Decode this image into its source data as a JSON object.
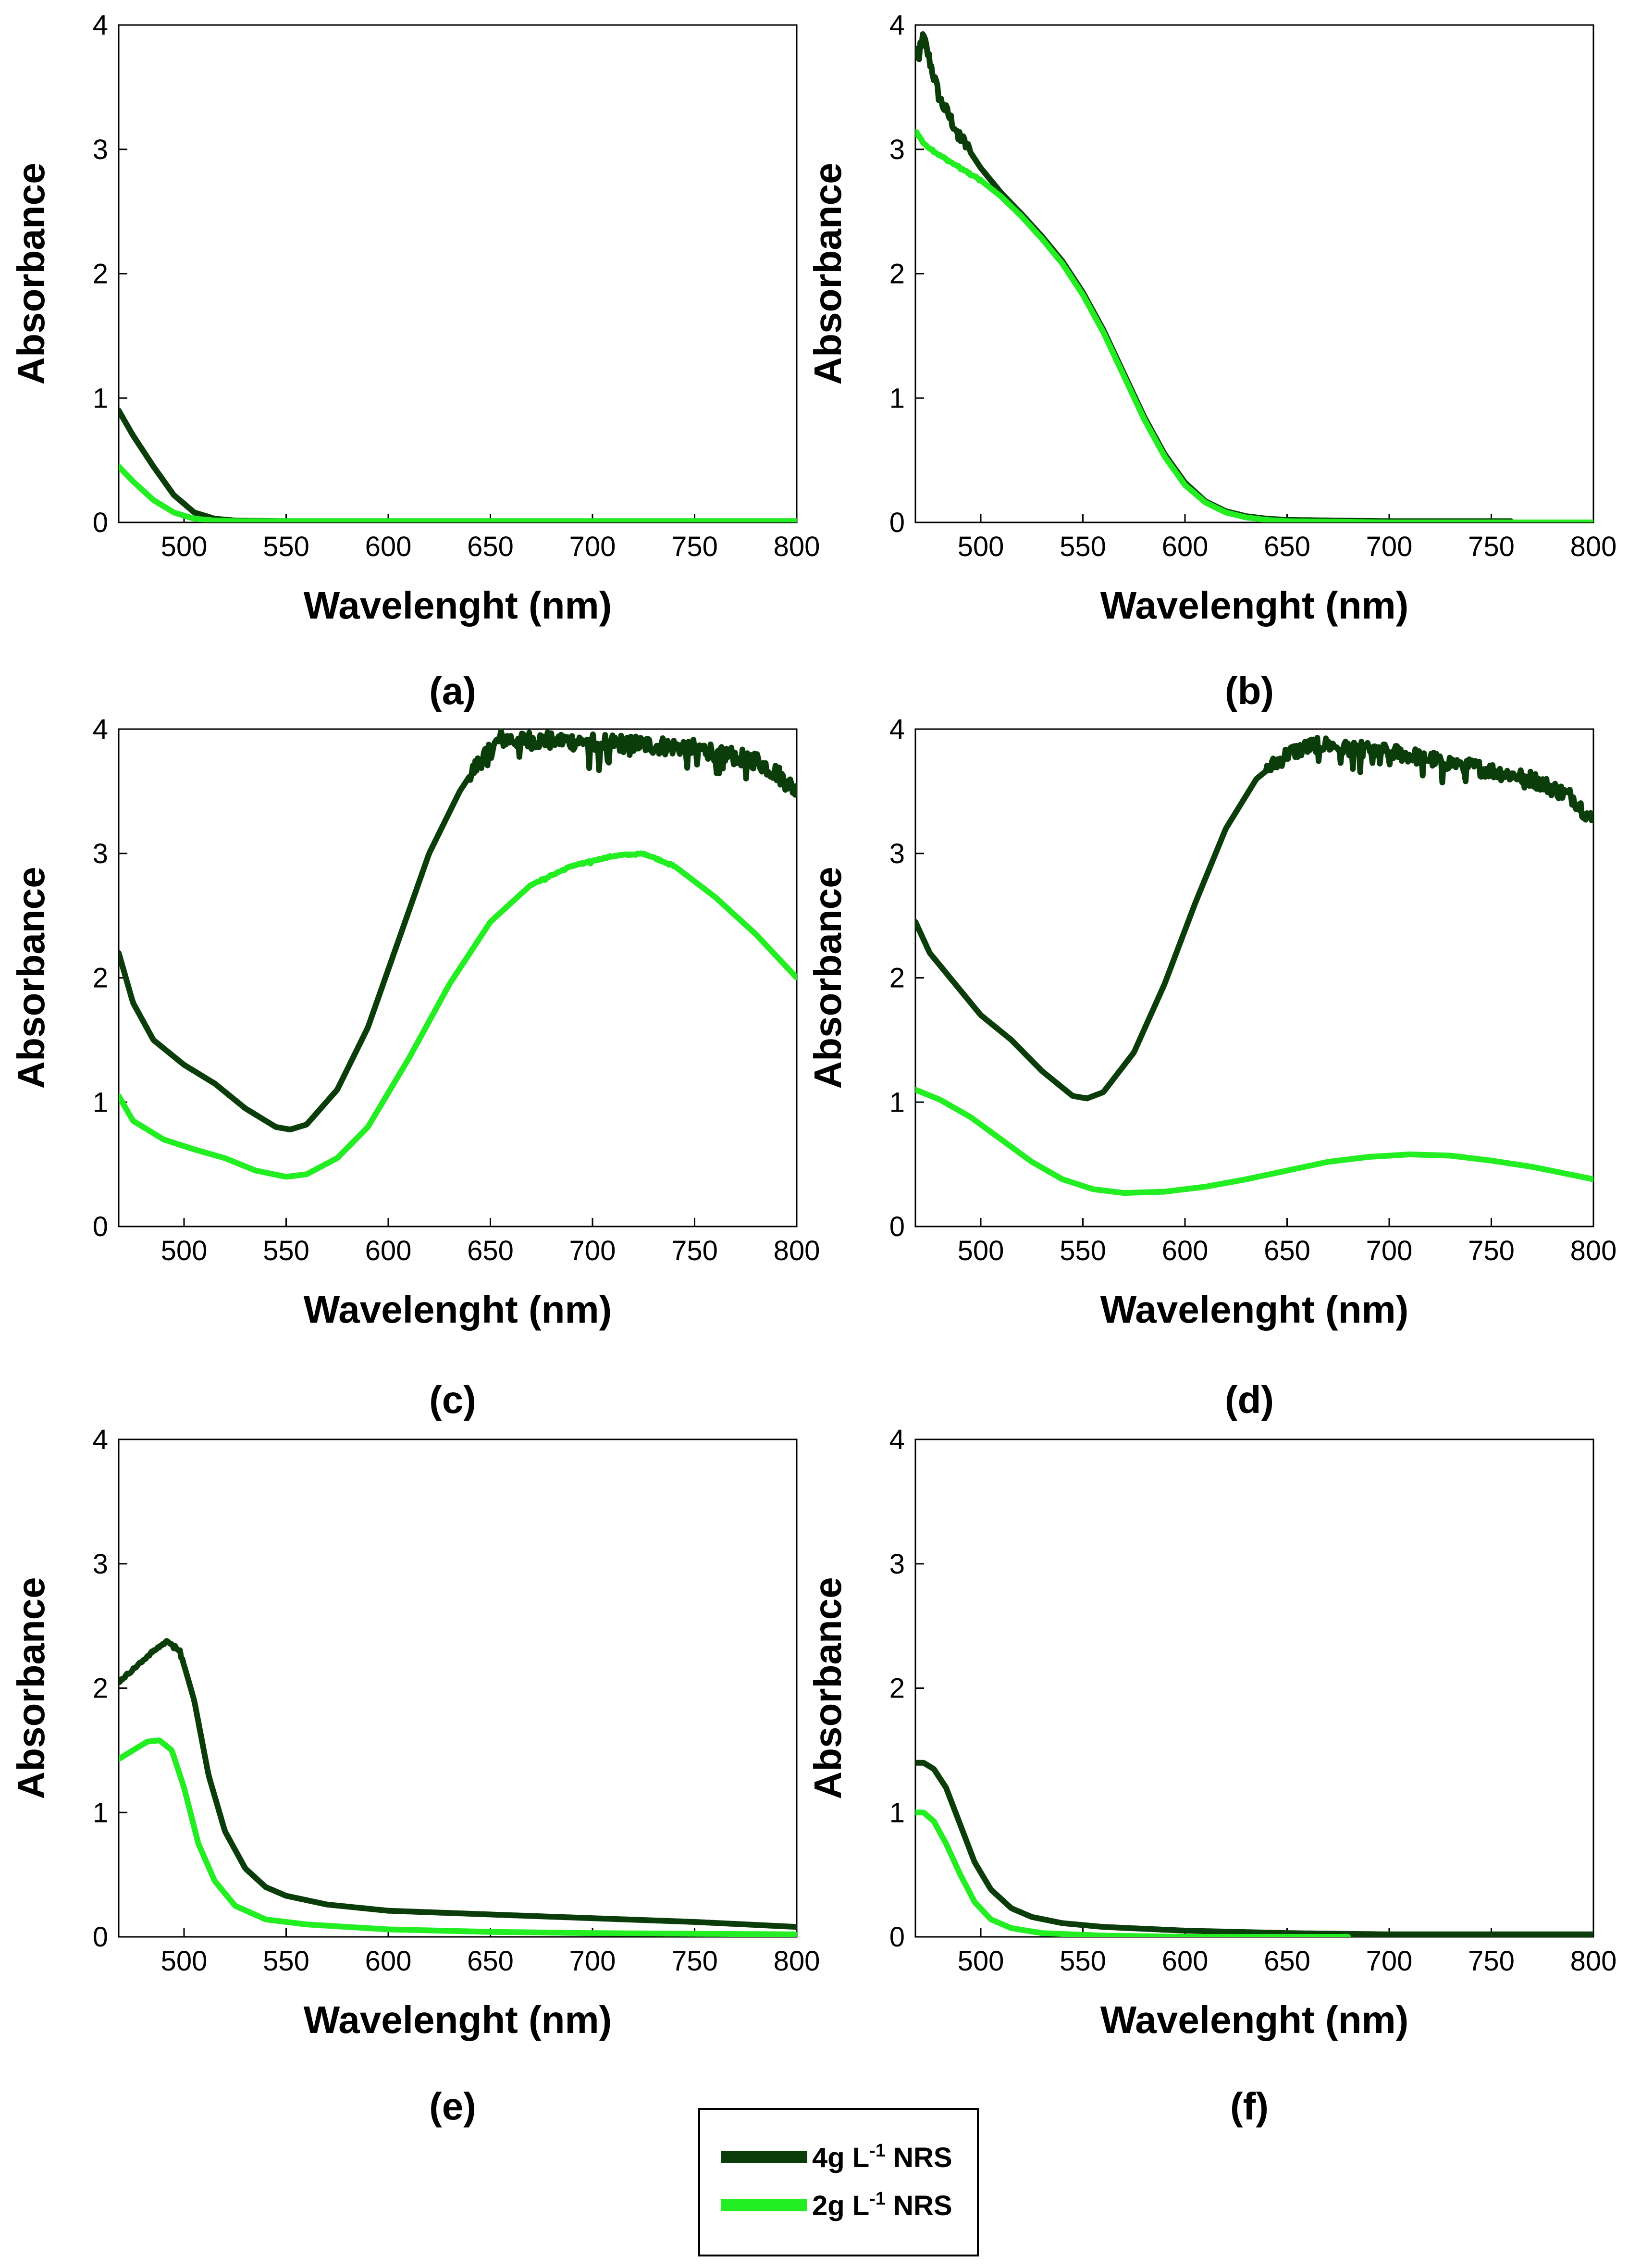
{
  "colors": {
    "dark": "#0b3d0b",
    "light": "#22ee22"
  },
  "legend": {
    "items": [
      {
        "key": "s4",
        "text": "4g L",
        "sup": "-1",
        "tail": " NRS",
        "color": "#0b3d0b"
      },
      {
        "key": "s2",
        "text": "2g L",
        "sup": "-1",
        "tail": " NRS",
        "color": "#22ee22"
      }
    ]
  },
  "chart_data": [
    {
      "id": "a",
      "panel_label": "(a)",
      "type": "line",
      "xlabel": "Wavelenght (nm)",
      "ylabel": "Absorbance",
      "xlim": [
        468,
        800
      ],
      "ylim": [
        0,
        4
      ],
      "xticks": [
        500,
        550,
        600,
        650,
        700,
        750,
        800
      ],
      "yticks": [
        0,
        1,
        2,
        3,
        4
      ],
      "series": [
        {
          "name": "4g L-1 NRS",
          "x": [
            468,
            475,
            485,
            495,
            505,
            515,
            525,
            550,
            600,
            700,
            800
          ],
          "y": [
            0.9,
            0.7,
            0.45,
            0.22,
            0.08,
            0.03,
            0.015,
            0.01,
            0.01,
            0.01,
            0.01
          ],
          "noise": 0
        },
        {
          "name": "2g L-1 NRS",
          "x": [
            468,
            475,
            485,
            495,
            505,
            515,
            525,
            550,
            600,
            700,
            800
          ],
          "y": [
            0.45,
            0.33,
            0.18,
            0.08,
            0.03,
            0.015,
            0.01,
            0.01,
            0.01,
            0.01,
            0.01
          ],
          "noise": 0
        }
      ]
    },
    {
      "id": "b",
      "panel_label": "(b)",
      "type": "line",
      "xlabel": "Wavelenght (nm)",
      "ylabel": "Absorbance",
      "xlim": [
        468,
        800
      ],
      "ylim": [
        0,
        4
      ],
      "xticks": [
        500,
        550,
        600,
        650,
        700,
        750,
        800
      ],
      "yticks": [
        0,
        1,
        2,
        3,
        4
      ],
      "series": [
        {
          "name": "4g L-1 NRS",
          "x": [
            468,
            472,
            480,
            490,
            500,
            510,
            520,
            530,
            540,
            550,
            560,
            570,
            580,
            590,
            600,
            610,
            620,
            630,
            640,
            650,
            700,
            760
          ],
          "y": [
            3.75,
            3.9,
            3.4,
            3.1,
            2.85,
            2.65,
            2.48,
            2.3,
            2.1,
            1.85,
            1.55,
            1.2,
            0.85,
            0.55,
            0.32,
            0.17,
            0.09,
            0.05,
            0.03,
            0.02,
            0.01,
            0.01
          ],
          "noise": 0.18,
          "noise_until": 495
        },
        {
          "name": "2g L-1 NRS",
          "x": [
            468,
            472,
            480,
            490,
            500,
            510,
            520,
            530,
            540,
            550,
            560,
            570,
            580,
            590,
            600,
            610,
            620,
            630,
            640,
            650,
            700,
            800
          ],
          "y": [
            3.15,
            3.05,
            2.95,
            2.85,
            2.75,
            2.62,
            2.46,
            2.28,
            2.08,
            1.83,
            1.53,
            1.18,
            0.83,
            0.53,
            0.3,
            0.16,
            0.08,
            0.04,
            0.02,
            0.01,
            0.0,
            0.0
          ],
          "noise": 0.03,
          "noise_until": 500
        }
      ]
    },
    {
      "id": "c",
      "panel_label": "(c)",
      "type": "line",
      "xlabel": "Wavelenght (nm)",
      "ylabel": "Absorbance",
      "xlim": [
        468,
        800
      ],
      "ylim": [
        0,
        4
      ],
      "xticks": [
        500,
        550,
        600,
        650,
        700,
        750,
        800
      ],
      "yticks": [
        0,
        1,
        2,
        3,
        4
      ],
      "series": [
        {
          "name": "4g L-1 NRS",
          "x": [
            468,
            475,
            485,
            500,
            515,
            530,
            545,
            552,
            560,
            575,
            590,
            605,
            620,
            635,
            645,
            655,
            700,
            750,
            780,
            790,
            800
          ],
          "y": [
            2.2,
            1.8,
            1.5,
            1.3,
            1.15,
            0.95,
            0.8,
            0.78,
            0.82,
            1.1,
            1.6,
            2.3,
            3.0,
            3.5,
            3.75,
            3.92,
            3.9,
            3.85,
            3.75,
            3.65,
            3.5
          ],
          "noise": 0.25,
          "noise_from": 640
        },
        {
          "name": "2g L-1 NRS",
          "x": [
            468,
            475,
            490,
            505,
            520,
            535,
            550,
            560,
            575,
            590,
            610,
            630,
            650,
            670,
            690,
            710,
            725,
            740,
            760,
            780,
            800
          ],
          "y": [
            1.05,
            0.85,
            0.7,
            0.62,
            0.55,
            0.45,
            0.4,
            0.42,
            0.55,
            0.8,
            1.35,
            1.95,
            2.45,
            2.75,
            2.9,
            2.98,
            3.0,
            2.9,
            2.65,
            2.35,
            2.0
          ],
          "noise": 0.02,
          "noise_from": 670,
          "noise_until": 740
        }
      ]
    },
    {
      "id": "d",
      "panel_label": "(d)",
      "type": "line",
      "xlabel": "Wavelenght (nm)",
      "ylabel": "Absorbance",
      "xlim": [
        468,
        800
      ],
      "ylim": [
        0,
        4
      ],
      "xticks": [
        500,
        550,
        600,
        650,
        700,
        750,
        800
      ],
      "yticks": [
        0,
        1,
        2,
        3,
        4
      ],
      "series": [
        {
          "name": "4g L-1 NRS",
          "x": [
            468,
            475,
            485,
            500,
            515,
            530,
            545,
            552,
            560,
            575,
            590,
            605,
            620,
            635,
            650,
            665,
            700,
            740,
            770,
            790,
            800
          ],
          "y": [
            2.45,
            2.2,
            2.0,
            1.7,
            1.5,
            1.25,
            1.05,
            1.03,
            1.08,
            1.4,
            1.95,
            2.6,
            3.2,
            3.6,
            3.8,
            3.88,
            3.82,
            3.7,
            3.6,
            3.45,
            3.25
          ],
          "noise": 0.22,
          "noise_from": 640
        },
        {
          "name": "2g L-1 NRS",
          "x": [
            468,
            480,
            495,
            510,
            525,
            540,
            555,
            570,
            590,
            610,
            630,
            650,
            670,
            690,
            710,
            730,
            750,
            770,
            800
          ],
          "y": [
            1.1,
            1.02,
            0.88,
            0.7,
            0.52,
            0.38,
            0.3,
            0.27,
            0.28,
            0.32,
            0.38,
            0.45,
            0.52,
            0.56,
            0.58,
            0.57,
            0.53,
            0.48,
            0.38
          ],
          "noise": 0
        }
      ]
    },
    {
      "id": "e",
      "panel_label": "(e)",
      "type": "line",
      "xlabel": "Wavelenght (nm)",
      "ylabel": "Absorbance",
      "xlim": [
        468,
        800
      ],
      "ylim": [
        0,
        4
      ],
      "xticks": [
        500,
        550,
        600,
        650,
        700,
        750,
        800
      ],
      "yticks": [
        0,
        1,
        2,
        3,
        4
      ],
      "series": [
        {
          "name": "4g L-1 NRS",
          "x": [
            468,
            475,
            485,
            492,
            498,
            505,
            512,
            520,
            530,
            540,
            550,
            570,
            600,
            650,
            700,
            750,
            800
          ],
          "y": [
            2.05,
            2.15,
            2.3,
            2.38,
            2.3,
            1.9,
            1.3,
            0.85,
            0.55,
            0.4,
            0.33,
            0.26,
            0.21,
            0.18,
            0.15,
            0.12,
            0.08
          ],
          "noise": 0.03,
          "noise_until": 500
        },
        {
          "name": "2g L-1 NRS",
          "x": [
            468,
            475,
            482,
            488,
            494,
            500,
            507,
            515,
            525,
            540,
            560,
            600,
            650,
            700,
            800
          ],
          "y": [
            1.43,
            1.5,
            1.57,
            1.58,
            1.5,
            1.2,
            0.75,
            0.45,
            0.25,
            0.14,
            0.1,
            0.06,
            0.04,
            0.03,
            0.02
          ],
          "noise": 0
        }
      ]
    },
    {
      "id": "f",
      "panel_label": "(f)",
      "type": "line",
      "xlabel": "Wavelenght (nm)",
      "ylabel": "Absorbance",
      "xlim": [
        468,
        800
      ],
      "ylim": [
        0,
        4
      ],
      "xticks": [
        500,
        550,
        600,
        650,
        700,
        750,
        800
      ],
      "yticks": [
        0,
        1,
        2,
        3,
        4
      ],
      "series": [
        {
          "name": "4g L-1 NRS",
          "x": [
            468,
            472,
            477,
            483,
            490,
            497,
            505,
            515,
            525,
            540,
            560,
            600,
            650,
            700,
            800
          ],
          "y": [
            1.4,
            1.4,
            1.35,
            1.2,
            0.9,
            0.6,
            0.38,
            0.23,
            0.16,
            0.11,
            0.08,
            0.05,
            0.03,
            0.02,
            0.02
          ],
          "noise": 0
        },
        {
          "name": "2g L-1 NRS",
          "x": [
            468,
            472,
            477,
            483,
            490,
            497,
            505,
            515,
            530,
            560,
            600,
            650,
            680
          ],
          "y": [
            1.0,
            1.0,
            0.93,
            0.75,
            0.5,
            0.28,
            0.14,
            0.07,
            0.03,
            0.01,
            0.0,
            0.0,
            0.0
          ],
          "noise": 0
        }
      ]
    }
  ]
}
